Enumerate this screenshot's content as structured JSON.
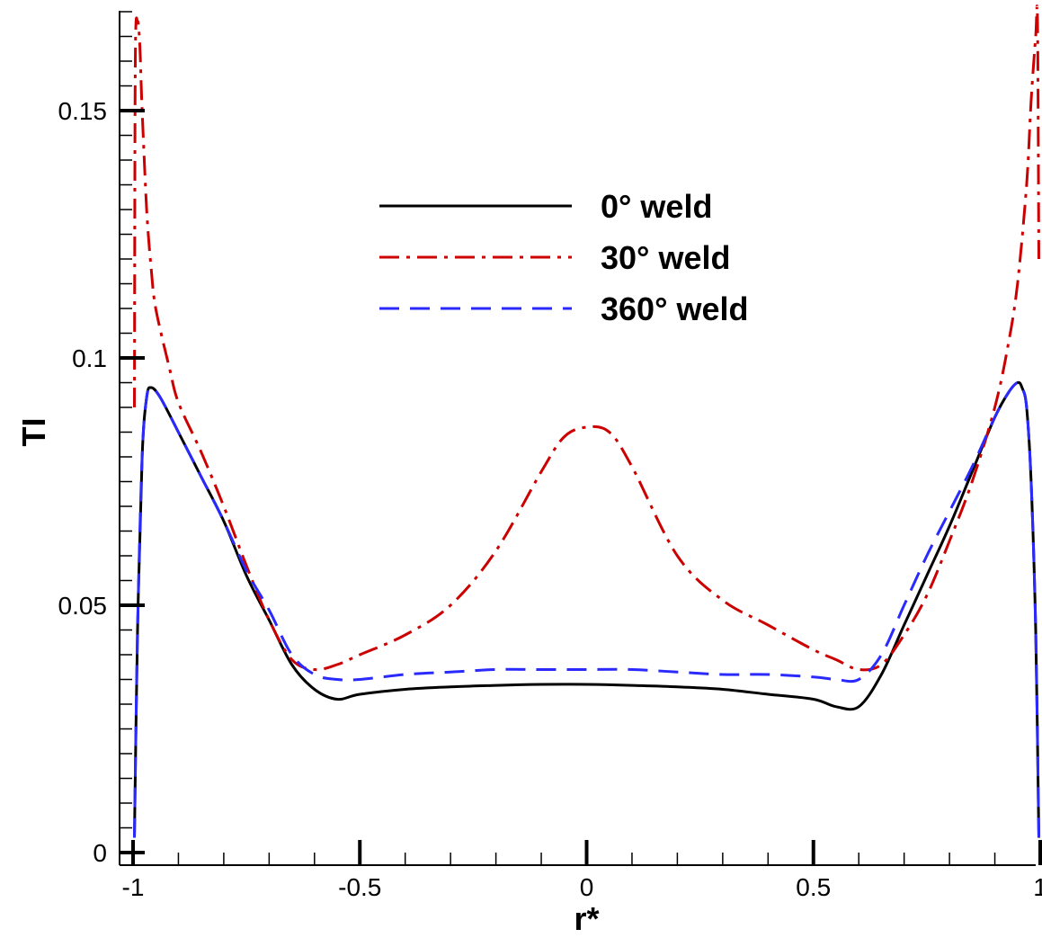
{
  "chart_data": {
    "type": "line",
    "title": "",
    "xlabel": "r*",
    "ylabel": "TI",
    "xlim": [
      -1.0,
      1.0
    ],
    "ylim": [
      0.0,
      0.17
    ],
    "x_ticks": [
      -1,
      -0.5,
      0,
      0.5,
      1
    ],
    "x_tick_labels": [
      "-1",
      "-0.5",
      "0",
      "0.5",
      "1"
    ],
    "y_ticks": [
      0,
      0.05,
      0.1,
      0.15
    ],
    "y_tick_labels": [
      "0",
      "0.05",
      "0.1",
      "0.15"
    ],
    "grid": false,
    "legend_position": "top-center",
    "series": [
      {
        "name": "0° weld",
        "color": "#000000",
        "dash": "solid",
        "x": [
          -0.997,
          -0.99,
          -0.98,
          -0.97,
          -0.96,
          -0.94,
          -0.9,
          -0.85,
          -0.8,
          -0.75,
          -0.7,
          -0.65,
          -0.6,
          -0.55,
          -0.5,
          -0.4,
          -0.3,
          -0.2,
          -0.1,
          0.0,
          0.1,
          0.2,
          0.3,
          0.4,
          0.5,
          0.55,
          0.6,
          0.65,
          0.7,
          0.75,
          0.8,
          0.85,
          0.9,
          0.93,
          0.95,
          0.96,
          0.97,
          0.98,
          0.99,
          0.997
        ],
        "y": [
          0.003,
          0.045,
          0.08,
          0.092,
          0.094,
          0.092,
          0.085,
          0.076,
          0.067,
          0.056,
          0.047,
          0.038,
          0.033,
          0.031,
          0.032,
          0.033,
          0.0335,
          0.0338,
          0.034,
          0.034,
          0.0338,
          0.0335,
          0.033,
          0.032,
          0.031,
          0.0295,
          0.0295,
          0.036,
          0.046,
          0.056,
          0.066,
          0.077,
          0.088,
          0.093,
          0.095,
          0.094,
          0.09,
          0.075,
          0.045,
          0.003
        ]
      },
      {
        "name": "30° weld",
        "color": "#cc0000",
        "dash": "dash-dot",
        "x": [
          -0.997,
          -0.995,
          -0.99,
          -0.985,
          -0.98,
          -0.97,
          -0.96,
          -0.95,
          -0.92,
          -0.9,
          -0.85,
          -0.8,
          -0.75,
          -0.7,
          -0.65,
          -0.6,
          -0.55,
          -0.5,
          -0.4,
          -0.3,
          -0.2,
          -0.1,
          -0.05,
          0.0,
          0.05,
          0.1,
          0.2,
          0.3,
          0.4,
          0.5,
          0.55,
          0.6,
          0.65,
          0.7,
          0.75,
          0.8,
          0.85,
          0.9,
          0.93,
          0.95,
          0.97,
          0.98,
          0.99,
          0.994,
          0.997
        ],
        "y": [
          0.09,
          0.16,
          0.168,
          0.163,
          0.15,
          0.13,
          0.118,
          0.11,
          0.098,
          0.091,
          0.081,
          0.07,
          0.058,
          0.047,
          0.039,
          0.037,
          0.038,
          0.04,
          0.044,
          0.05,
          0.061,
          0.077,
          0.084,
          0.086,
          0.085,
          0.078,
          0.06,
          0.051,
          0.046,
          0.041,
          0.039,
          0.037,
          0.038,
          0.044,
          0.052,
          0.063,
          0.075,
          0.09,
          0.103,
          0.115,
          0.135,
          0.152,
          0.165,
          0.168,
          0.12
        ]
      },
      {
        "name": "360° weld",
        "color": "#2a2aff",
        "dash": "dashed",
        "x": [
          -0.997,
          -0.99,
          -0.98,
          -0.97,
          -0.96,
          -0.94,
          -0.9,
          -0.85,
          -0.8,
          -0.75,
          -0.7,
          -0.65,
          -0.6,
          -0.55,
          -0.5,
          -0.4,
          -0.3,
          -0.2,
          -0.1,
          0.0,
          0.1,
          0.2,
          0.3,
          0.4,
          0.5,
          0.55,
          0.6,
          0.65,
          0.7,
          0.75,
          0.8,
          0.85,
          0.9,
          0.93,
          0.95,
          0.96,
          0.97,
          0.98,
          0.99,
          0.997
        ],
        "y": [
          0.003,
          0.045,
          0.08,
          0.092,
          0.094,
          0.092,
          0.085,
          0.076,
          0.067,
          0.057,
          0.049,
          0.04,
          0.036,
          0.035,
          0.035,
          0.036,
          0.0365,
          0.037,
          0.037,
          0.037,
          0.037,
          0.0365,
          0.036,
          0.036,
          0.0355,
          0.035,
          0.035,
          0.04,
          0.05,
          0.06,
          0.069,
          0.078,
          0.088,
          0.093,
          0.095,
          0.094,
          0.09,
          0.075,
          0.045,
          0.003
        ]
      }
    ]
  }
}
